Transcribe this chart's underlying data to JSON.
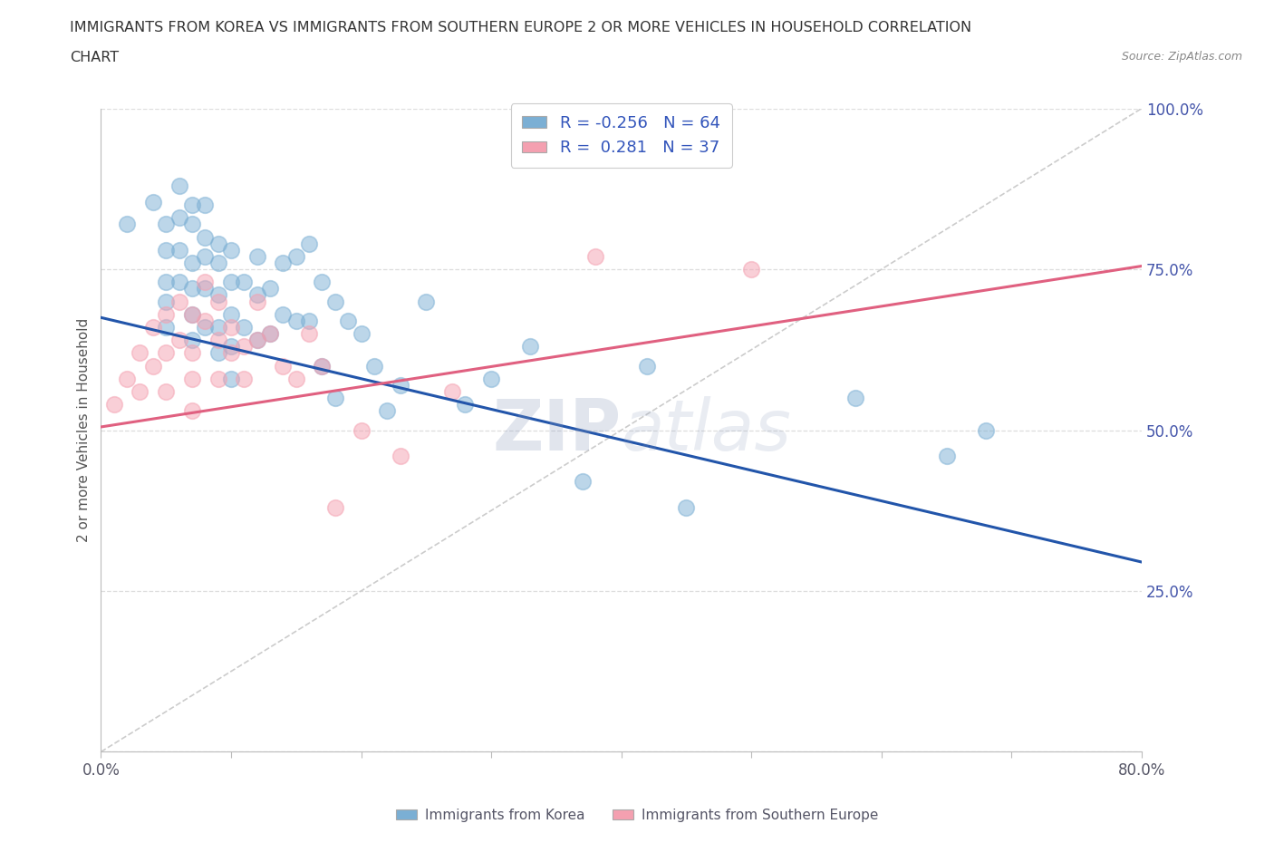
{
  "title_line1": "IMMIGRANTS FROM KOREA VS IMMIGRANTS FROM SOUTHERN EUROPE 2 OR MORE VEHICLES IN HOUSEHOLD CORRELATION",
  "title_line2": "CHART",
  "source_text": "Source: ZipAtlas.com",
  "ylabel": "2 or more Vehicles in Household",
  "legend_label1": "Immigrants from Korea",
  "legend_label2": "Immigrants from Southern Europe",
  "R1": -0.256,
  "N1": 64,
  "R2": 0.281,
  "N2": 37,
  "color_korea": "#7BAFD4",
  "color_se": "#F4A0B0",
  "color_trend_korea": "#2255AA",
  "color_trend_se": "#E06080",
  "color_dashed": "#CCCCCC",
  "xmin": 0.0,
  "xmax": 0.8,
  "ymin": 0.0,
  "ymax": 1.0,
  "korea_trend_x0": 0.0,
  "korea_trend_y0": 0.675,
  "korea_trend_x1": 0.8,
  "korea_trend_y1": 0.295,
  "se_trend_x0": 0.0,
  "se_trend_y0": 0.505,
  "se_trend_x1": 0.8,
  "se_trend_y1": 0.755,
  "korea_x": [
    0.02,
    0.04,
    0.05,
    0.05,
    0.05,
    0.05,
    0.05,
    0.06,
    0.06,
    0.06,
    0.06,
    0.07,
    0.07,
    0.07,
    0.07,
    0.07,
    0.07,
    0.08,
    0.08,
    0.08,
    0.08,
    0.08,
    0.09,
    0.09,
    0.09,
    0.09,
    0.09,
    0.1,
    0.1,
    0.1,
    0.1,
    0.1,
    0.11,
    0.11,
    0.12,
    0.12,
    0.12,
    0.13,
    0.13,
    0.14,
    0.14,
    0.15,
    0.15,
    0.16,
    0.16,
    0.17,
    0.17,
    0.18,
    0.18,
    0.19,
    0.2,
    0.21,
    0.22,
    0.23,
    0.25,
    0.28,
    0.3,
    0.33,
    0.37,
    0.42,
    0.45,
    0.58,
    0.65,
    0.68
  ],
  "korea_y": [
    0.82,
    0.855,
    0.82,
    0.78,
    0.73,
    0.7,
    0.66,
    0.88,
    0.83,
    0.78,
    0.73,
    0.85,
    0.82,
    0.76,
    0.72,
    0.68,
    0.64,
    0.85,
    0.8,
    0.77,
    0.72,
    0.66,
    0.79,
    0.76,
    0.71,
    0.66,
    0.62,
    0.78,
    0.73,
    0.68,
    0.63,
    0.58,
    0.73,
    0.66,
    0.77,
    0.71,
    0.64,
    0.72,
    0.65,
    0.76,
    0.68,
    0.77,
    0.67,
    0.79,
    0.67,
    0.73,
    0.6,
    0.7,
    0.55,
    0.67,
    0.65,
    0.6,
    0.53,
    0.57,
    0.7,
    0.54,
    0.58,
    0.63,
    0.42,
    0.6,
    0.38,
    0.55,
    0.46,
    0.5
  ],
  "se_x": [
    0.01,
    0.02,
    0.03,
    0.03,
    0.04,
    0.04,
    0.05,
    0.05,
    0.05,
    0.06,
    0.06,
    0.07,
    0.07,
    0.07,
    0.07,
    0.08,
    0.08,
    0.09,
    0.09,
    0.09,
    0.1,
    0.1,
    0.11,
    0.11,
    0.12,
    0.12,
    0.13,
    0.14,
    0.15,
    0.16,
    0.17,
    0.18,
    0.2,
    0.23,
    0.27,
    0.38,
    0.5
  ],
  "se_y": [
    0.54,
    0.58,
    0.62,
    0.56,
    0.66,
    0.6,
    0.68,
    0.62,
    0.56,
    0.7,
    0.64,
    0.68,
    0.62,
    0.58,
    0.53,
    0.73,
    0.67,
    0.7,
    0.64,
    0.58,
    0.66,
    0.62,
    0.63,
    0.58,
    0.7,
    0.64,
    0.65,
    0.6,
    0.58,
    0.65,
    0.6,
    0.38,
    0.5,
    0.46,
    0.56,
    0.77,
    0.75
  ]
}
